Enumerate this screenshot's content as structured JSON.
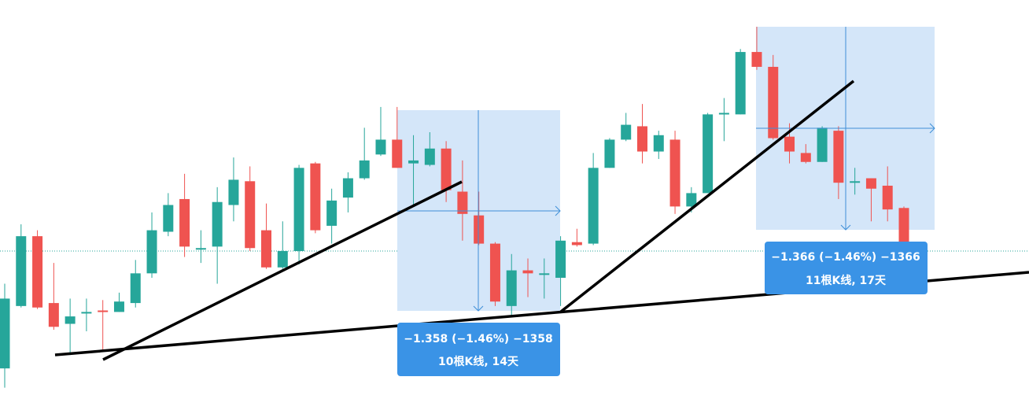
{
  "chart_data": {
    "type": "candlestick",
    "up_color": "#26a69a",
    "down_color": "#ef5350",
    "ylim": [
      90.98,
      93.74
    ],
    "open": [
      91.26,
      91.68,
      92.15,
      91.7,
      91.56,
      91.63,
      91.65,
      91.64,
      91.7,
      91.9,
      92.18,
      92.4,
      92.07,
      92.08,
      92.36,
      92.52,
      92.19,
      91.94,
      92.05,
      92.64,
      92.22,
      92.41,
      92.54,
      92.7,
      92.8,
      92.64,
      92.63,
      92.74,
      92.45,
      92.29,
      92.1,
      91.68,
      91.92,
      91.89,
      91.87,
      92.11,
      92.1,
      92.61,
      92.8,
      92.89,
      92.72,
      92.8,
      92.35,
      92.44,
      92.97,
      92.97,
      93.39,
      93.29,
      92.82,
      92.71,
      92.65,
      92.86,
      92.51,
      92.54,
      92.49,
      92.34
    ],
    "high": [
      91.83,
      92.23,
      92.19,
      91.97,
      91.73,
      91.73,
      91.72,
      91.77,
      91.99,
      92.31,
      92.44,
      92.57,
      92.19,
      92.48,
      92.68,
      92.62,
      92.37,
      92.25,
      92.63,
      92.65,
      92.47,
      92.58,
      92.88,
      93.02,
      93.02,
      92.83,
      92.85,
      92.79,
      92.66,
      92.45,
      92.11,
      92.03,
      92.0,
      92.0,
      92.15,
      92.2,
      92.71,
      92.81,
      92.98,
      93.04,
      92.86,
      92.86,
      92.48,
      92.98,
      93.08,
      93.41,
      93.56,
      93.37,
      92.91,
      92.77,
      92.89,
      92.89,
      92.61,
      92.54,
      92.62,
      92.35
    ],
    "low": [
      91.13,
      91.67,
      91.66,
      91.52,
      91.35,
      91.51,
      91.37,
      91.64,
      91.67,
      91.87,
      92.15,
      92.01,
      91.97,
      91.83,
      92.25,
      92.05,
      91.93,
      91.93,
      91.96,
      92.17,
      92.1,
      92.31,
      92.53,
      92.69,
      92.61,
      92.36,
      92.62,
      92.38,
      92.12,
      92.09,
      91.68,
      91.62,
      91.74,
      91.73,
      91.68,
      92.08,
      92.09,
      92.61,
      92.79,
      92.64,
      92.67,
      92.3,
      92.31,
      92.44,
      92.79,
      92.97,
      93.27,
      92.8,
      92.64,
      92.64,
      92.65,
      92.4,
      92.43,
      92.25,
      92.25,
      92.05
    ],
    "close": [
      91.73,
      92.15,
      91.67,
      91.54,
      91.61,
      91.64,
      91.64,
      91.71,
      91.9,
      92.19,
      92.36,
      92.08,
      92.07,
      92.38,
      92.53,
      92.07,
      91.94,
      92.05,
      92.61,
      92.19,
      92.39,
      92.54,
      92.66,
      92.8,
      92.61,
      92.66,
      92.74,
      92.46,
      92.3,
      92.1,
      91.71,
      91.92,
      91.9,
      91.9,
      92.12,
      92.09,
      92.61,
      92.8,
      92.9,
      92.72,
      92.83,
      92.35,
      92.44,
      92.97,
      92.98,
      93.39,
      93.29,
      92.81,
      92.72,
      92.65,
      92.88,
      92.51,
      92.52,
      92.47,
      92.33,
      92.05
    ],
    "measures": [
      {
        "change": "−1.358 (−1.46%) −1358",
        "span": "10根K线, 14天"
      },
      {
        "change": "−1.366 (−1.46%) −1366",
        "span": "11根K线, 17天"
      }
    ]
  }
}
